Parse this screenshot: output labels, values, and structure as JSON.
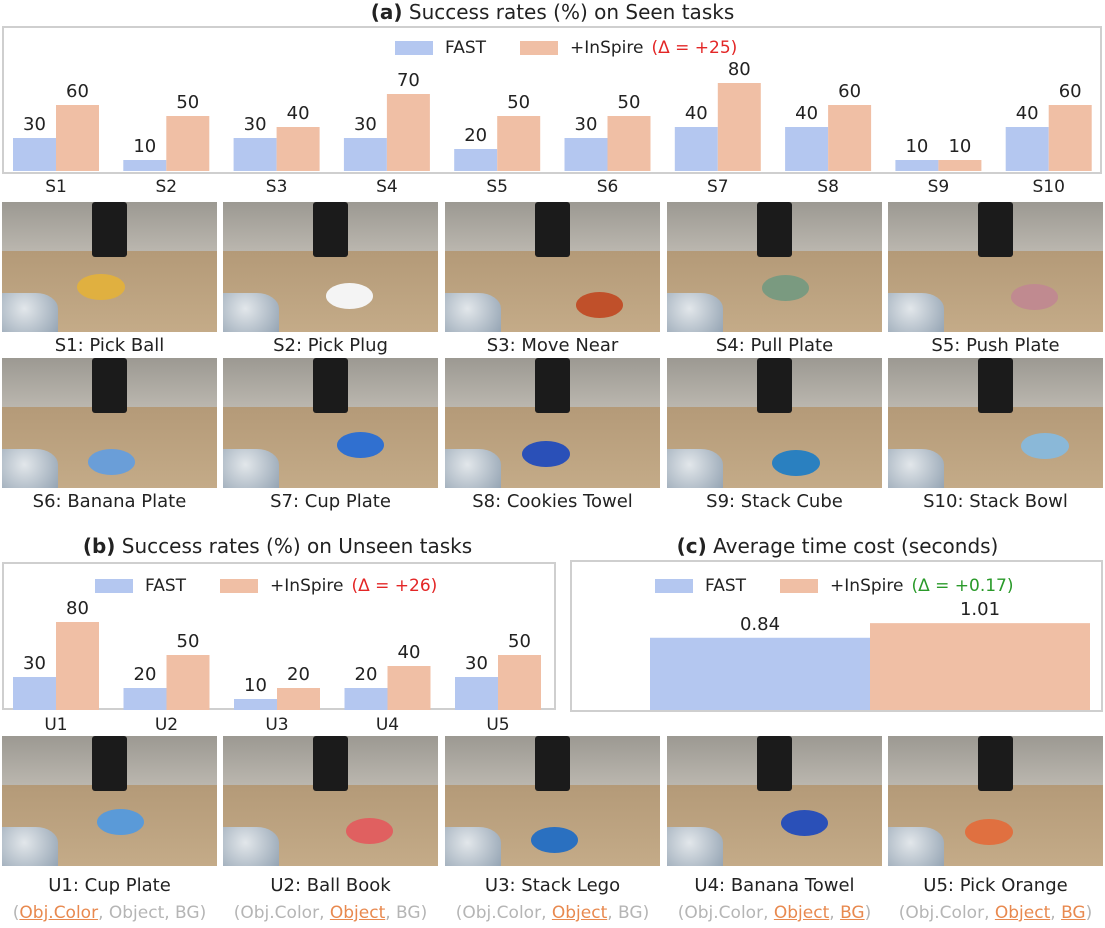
{
  "panel_a": {
    "title_bold": "(a)",
    "title_text": "Success rates (%) on Seen tasks",
    "legend_fast": "FAST",
    "legend_inspire": "+InSpire",
    "delta": "(Δ = +25)"
  },
  "panel_b": {
    "title_bold": "(b)",
    "title_text": "Success rates (%) on Unseen tasks",
    "legend_fast": "FAST",
    "legend_inspire": "+InSpire",
    "delta": "(Δ = +26)"
  },
  "panel_c": {
    "title_bold": "(c)",
    "title_text": "Average time cost (seconds)",
    "legend_fast": "FAST",
    "legend_inspire": "+InSpire",
    "delta": "(Δ = +0.17)"
  },
  "colors": {
    "fast": "#b4c7f0",
    "inspire": "#f0bfa5",
    "delta_red": "#e32626",
    "delta_green": "#2a9a2a",
    "highlight": "#e8894f"
  },
  "chart_data": [
    {
      "type": "bar",
      "title": "Success rates (%) on Seen tasks",
      "categories": [
        "S1",
        "S2",
        "S3",
        "S4",
        "S5",
        "S6",
        "S7",
        "S8",
        "S9",
        "S10"
      ],
      "series": [
        {
          "name": "FAST",
          "values": [
            30,
            10,
            30,
            30,
            20,
            30,
            40,
            40,
            10,
            40
          ]
        },
        {
          "name": "+InSpire",
          "values": [
            60,
            50,
            40,
            70,
            50,
            50,
            80,
            60,
            10,
            60
          ]
        }
      ],
      "ylim": [
        0,
        90
      ],
      "legend": "top-center"
    },
    {
      "type": "bar",
      "title": "Success rates (%) on Unseen tasks",
      "categories": [
        "U1",
        "U2",
        "U3",
        "U4",
        "U5"
      ],
      "series": [
        {
          "name": "FAST",
          "values": [
            30,
            20,
            10,
            20,
            30
          ]
        },
        {
          "name": "+InSpire",
          "values": [
            80,
            50,
            20,
            40,
            50
          ]
        }
      ],
      "ylim": [
        0,
        90
      ],
      "legend": "top-center"
    },
    {
      "type": "bar",
      "title": "Average time cost (seconds)",
      "categories": [
        ""
      ],
      "series": [
        {
          "name": "FAST",
          "values": [
            0.84
          ]
        },
        {
          "name": "+InSpire",
          "values": [
            1.01
          ]
        }
      ],
      "ylim": [
        0,
        1.0
      ],
      "legend": "top-center"
    }
  ],
  "seen_tasks": [
    {
      "label": "S1: Pick Ball",
      "obj": "#e0b040"
    },
    {
      "label": "S2: Pick Plug",
      "obj": "#f4f4f4"
    },
    {
      "label": "S3: Move Near",
      "obj": "#c0502a"
    },
    {
      "label": "S4: Pull Plate",
      "obj": "#7a9a80"
    },
    {
      "label": "S5: Push Plate",
      "obj": "#c08a90"
    },
    {
      "label": "S6: Banana Plate",
      "obj": "#6a9ed8"
    },
    {
      "label": "S7: Cup Plate",
      "obj": "#3070d0"
    },
    {
      "label": "S8: Cookies Towel",
      "obj": "#2a50b8"
    },
    {
      "label": "S9: Stack Cube",
      "obj": "#2a80c0"
    },
    {
      "label": "S10: Stack Bowl",
      "obj": "#8ab8d8"
    }
  ],
  "unseen_tasks": [
    {
      "label": "U1: Cup Plate",
      "obj": "#5a9ad8",
      "pre": "(",
      "a": "Obj.Color",
      "b": ", Object, BG)",
      "c": "",
      "d": "",
      "hl": "a"
    },
    {
      "label": "U2: Ball Book",
      "obj": "#e06060",
      "pre": "(Obj.Color, ",
      "a": "Object",
      "b": ", BG)",
      "c": "",
      "d": "",
      "hl": "a"
    },
    {
      "label": "U3: Stack Lego",
      "obj": "#2a70c0",
      "pre": "(Obj.Color, ",
      "a": "Object",
      "b": ", BG)",
      "c": "",
      "d": "",
      "hl": "a"
    },
    {
      "label": "U4: Banana Towel",
      "obj": "#2a50b8",
      "pre": "(Obj.Color, ",
      "a": "Object",
      "b": ", ",
      "c": "BG",
      "d": ")",
      "hl": "ac"
    },
    {
      "label": "U5: Pick Orange",
      "obj": "#e07040",
      "pre": "(Obj.Color, ",
      "a": "Object",
      "b": ", ",
      "c": "BG",
      "d": ")",
      "hl": "ac"
    }
  ]
}
